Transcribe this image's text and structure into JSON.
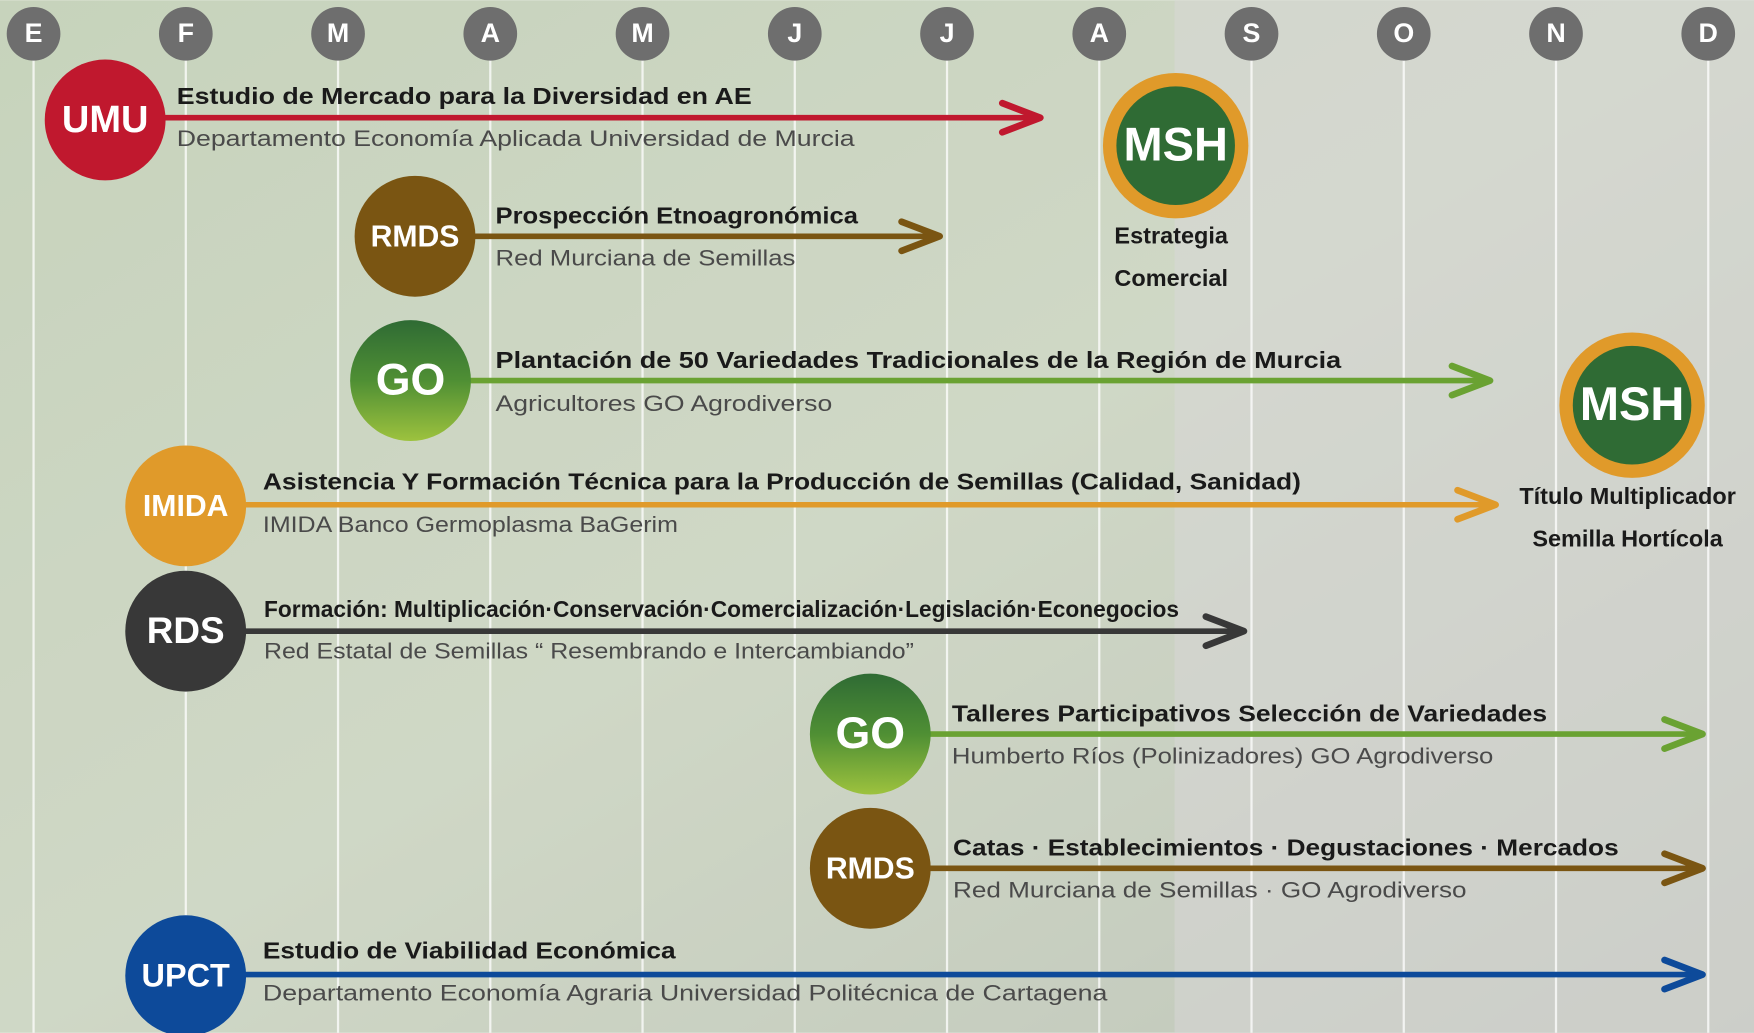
{
  "months": [
    "E",
    "F",
    "M",
    "A",
    "M",
    "J",
    "J",
    "A",
    "S",
    "O",
    "N",
    "D"
  ],
  "tasks": [
    {
      "badge": "UMU",
      "title": "Estudio de Mercado para la Diversidad en AE",
      "subtitle": "Departamento Economía Aplicada Universidad de Murcia",
      "color": "#c0182e"
    },
    {
      "badge": "RMDS",
      "title": "Prospección Etnoagronómica",
      "subtitle": "Red Murciana de Semillas",
      "color": "#7a5512"
    },
    {
      "badge": "GO",
      "title": "Plantación de 50 Variedades Tradicionales de la Región de Murcia",
      "subtitle": "Agricultores GO Agrodiverso",
      "color": "#6aa232"
    },
    {
      "badge": "IMIDA",
      "title": "Asistencia Y Formación Técnica para la Producción de Semillas (Calidad, Sanidad)",
      "subtitle": "IMIDA Banco Germoplasma BaGerim",
      "color": "#e09a2a"
    },
    {
      "badge": "RDS",
      "title": "Formación: Multiplicación·Conservación·Comercialización·Legislación·Econegocios",
      "subtitle": "Red Estatal de Semillas “ Resembrando e Intercambiando”",
      "color": "#383838"
    },
    {
      "badge": "GO",
      "title": "Talleres Participativos Selección de Variedades",
      "subtitle": "Humberto Ríos (Polinizadores) GO Agrodiverso",
      "color": "#6aa232"
    },
    {
      "badge": "RMDS",
      "title": "Catas · Establecimientos · Degustaciones · Mercados",
      "subtitle": "Red Murciana de Semillas · GO Agrodiverso",
      "color": "#7a5512"
    },
    {
      "badge": "UPCT",
      "title": "Estudio de Viabilidad Económica",
      "subtitle": "Departamento Economía Agraria Universidad Politécnica de Cartagena",
      "color": "#0d4a9a"
    }
  ],
  "milestones": [
    {
      "badge": "MSH",
      "label": [
        "Estrategia",
        "Comercial"
      ]
    },
    {
      "badge": "MSH",
      "label": [
        "Título Multiplicador",
        "Semilla Hortícola"
      ]
    }
  ]
}
